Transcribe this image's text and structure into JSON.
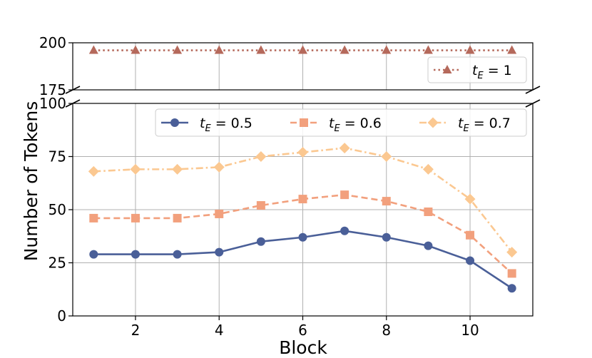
{
  "chart_data": {
    "type": "line",
    "xlabel": "Block",
    "ylabel": "Number of Tokens",
    "x": [
      1,
      2,
      3,
      4,
      5,
      6,
      7,
      8,
      9,
      10,
      11
    ],
    "x_ticks": [
      "2",
      "4",
      "6",
      "8",
      "10"
    ],
    "xlim": [
      0.5,
      11.5
    ],
    "grid": true,
    "broken_axis": true,
    "upper_panel": {
      "ylim": [
        175,
        200
      ],
      "y_ticks": [
        "175",
        "200"
      ],
      "legend_position": "lower-right",
      "series": [
        {
          "name": "t_E = 1",
          "legend_base": "t",
          "legend_sub": "E",
          "legend_rest": " = 1",
          "values": [
            196,
            196,
            196,
            196,
            196,
            196,
            196,
            196,
            196,
            196,
            196
          ],
          "color": "#b5695b",
          "marker": "triangle",
          "linestyle": "dotted"
        }
      ]
    },
    "lower_panel": {
      "ylim": [
        0,
        100
      ],
      "y_ticks": [
        "0",
        "25",
        "50",
        "75",
        "100"
      ],
      "legend_position": "top-right",
      "series": [
        {
          "name": "t_E = 0.5",
          "legend_base": "t",
          "legend_sub": "E",
          "legend_rest": " = 0.5",
          "values": [
            29,
            29,
            29,
            30,
            35,
            37,
            40,
            37,
            33,
            26,
            13
          ],
          "color": "#4a5f98",
          "marker": "circle",
          "linestyle": "solid"
        },
        {
          "name": "t_E = 0.6",
          "legend_base": "t",
          "legend_sub": "E",
          "legend_rest": " = 0.6",
          "values": [
            46,
            46,
            46,
            48,
            52,
            55,
            57,
            54,
            49,
            38,
            20
          ],
          "color": "#f2a07d",
          "marker": "square",
          "linestyle": "dashed"
        },
        {
          "name": "t_E = 0.7",
          "legend_base": "t",
          "legend_sub": "E",
          "legend_rest": " = 0.7",
          "values": [
            68,
            69,
            69,
            70,
            75,
            77,
            79,
            75,
            69,
            55,
            30
          ],
          "color": "#fbc891",
          "marker": "diamond",
          "linestyle": "dashdot"
        }
      ]
    }
  }
}
